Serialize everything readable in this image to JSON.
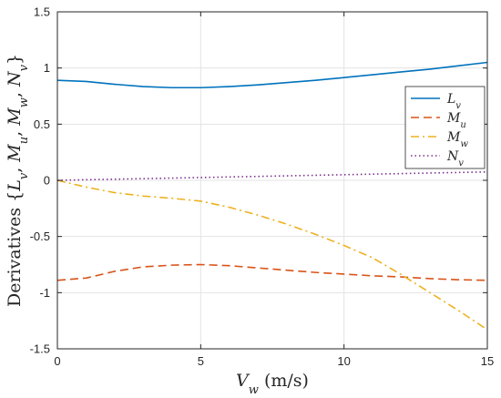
{
  "chart_data": {
    "type": "line",
    "xlabel": "V_w (m/s)",
    "ylabel": "Derivatives {L_v, M_u, M_w, N_v}",
    "xlim": [
      0,
      15
    ],
    "ylim": [
      -1.5,
      1.5
    ],
    "xticks": [
      0,
      5,
      10,
      15
    ],
    "xtick_labels": [
      "0",
      "5",
      "10",
      "15"
    ],
    "yticks": [
      -1.5,
      -1,
      -0.5,
      0,
      0.5,
      1,
      1.5
    ],
    "ytick_labels": [
      "-1.5",
      "-1",
      "-0.5",
      "0",
      "0.5",
      "1",
      "1.5"
    ],
    "grid": true,
    "legend_position": "right",
    "series": [
      {
        "name": "L_v",
        "color": "#0072BD",
        "dash": "solid",
        "x": [
          0,
          1,
          2,
          3,
          4,
          5,
          6,
          7,
          8,
          9,
          10,
          11,
          12,
          13,
          14,
          15
        ],
        "y": [
          0.89,
          0.88,
          0.855,
          0.835,
          0.825,
          0.825,
          0.835,
          0.85,
          0.87,
          0.89,
          0.915,
          0.94,
          0.965,
          0.99,
          1.02,
          1.05
        ]
      },
      {
        "name": "M_u",
        "color": "#D95319",
        "dash": "dashed",
        "x": [
          0,
          1,
          2,
          3,
          4,
          5,
          6,
          7,
          8,
          9,
          10,
          11,
          12,
          13,
          14,
          15
        ],
        "y": [
          -0.89,
          -0.87,
          -0.81,
          -0.77,
          -0.755,
          -0.75,
          -0.76,
          -0.78,
          -0.8,
          -0.82,
          -0.835,
          -0.85,
          -0.86,
          -0.875,
          -0.885,
          -0.89
        ]
      },
      {
        "name": "M_w",
        "color": "#EDB120",
        "dash": "dashdot",
        "x": [
          0,
          1,
          2,
          3,
          4,
          5,
          6,
          7,
          8,
          9,
          10,
          11,
          12,
          13,
          14,
          15
        ],
        "y": [
          0.0,
          -0.06,
          -0.11,
          -0.14,
          -0.16,
          -0.185,
          -0.24,
          -0.31,
          -0.39,
          -0.48,
          -0.58,
          -0.69,
          -0.84,
          -1.0,
          -1.16,
          -1.33
        ]
      },
      {
        "name": "N_v",
        "color": "#7E2F8E",
        "dash": "dotted",
        "x": [
          0,
          5,
          10,
          15
        ],
        "y": [
          0.0,
          0.025,
          0.05,
          0.075
        ]
      }
    ]
  }
}
